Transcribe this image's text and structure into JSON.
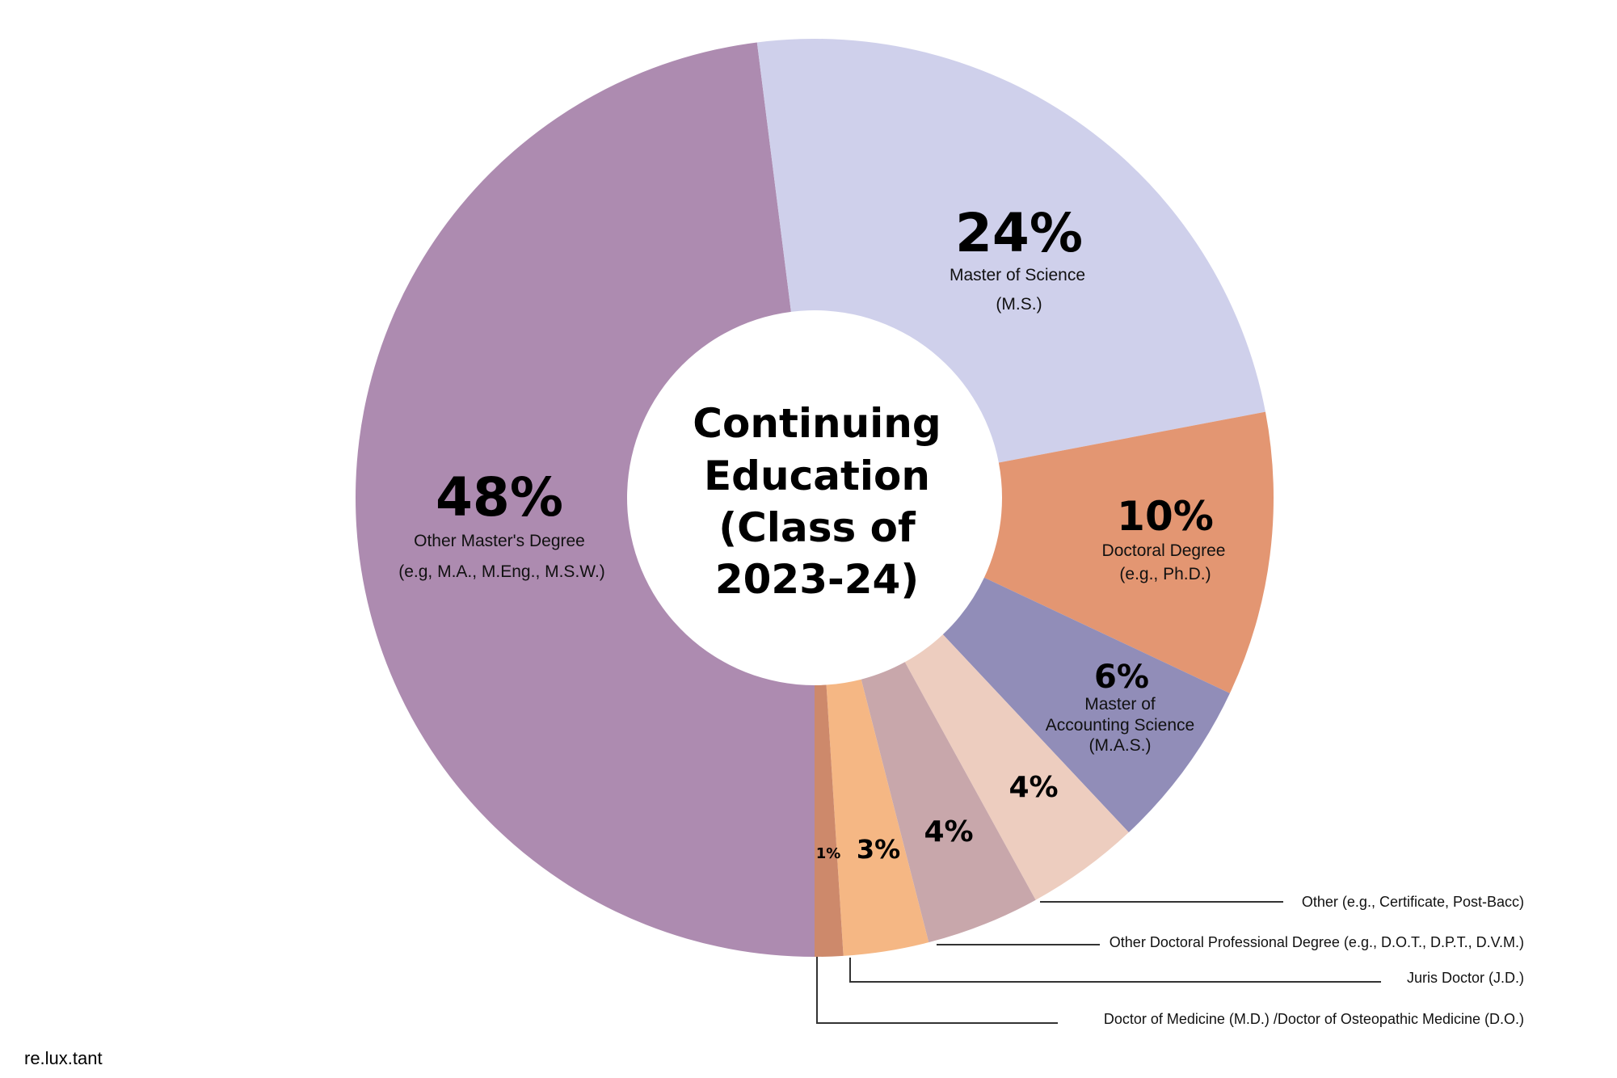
{
  "chart_data": {
    "type": "pie",
    "donut": true,
    "title_lines": [
      "Continuing",
      "Education",
      "(Class of",
      "2023-24)"
    ],
    "slices": [
      {
        "name": "Other Master's Degree (e.g, M.A., M.Eng., M.S.W.)",
        "value": 48,
        "pct_label": "48%",
        "label_lines": [
          "Other Master's Degree",
          "(e.g, M.A., M.Eng., M.S.W.)"
        ],
        "color": "#ad8bb0"
      },
      {
        "name": "Master of Science (M.S.)",
        "value": 24,
        "pct_label": "24%",
        "label_lines": [
          "Master of Science",
          "(M.S.)"
        ],
        "color": "#cfd0eb"
      },
      {
        "name": "Doctoral Degree (e.g., Ph.D.)",
        "value": 10,
        "pct_label": "10%",
        "label_lines": [
          "Doctoral Degree",
          "(e.g., Ph.D.)"
        ],
        "color": "#e39672"
      },
      {
        "name": "Master of Accounting Science (M.A.S.)",
        "value": 6,
        "pct_label": "6%",
        "label_lines": [
          "Master of",
          "Accounting Science",
          "(M.A.S.)"
        ],
        "color": "#918db8"
      },
      {
        "name": "Other (e.g., Certificate, Post-Bacc)",
        "value": 4,
        "pct_label": "4%",
        "leader_label": "Other (e.g., Certificate, Post-Bacc)",
        "color": "#edcdbf"
      },
      {
        "name": "Other Doctoral Professional Degree (e.g., D.O.T., D.P.T., D.V.M.)",
        "value": 4,
        "pct_label": "4%",
        "leader_label": "Other Doctoral Professional Degree (e.g., D.O.T., D.P.T., D.V.M.)",
        "color": "#c8a7ab"
      },
      {
        "name": "Juris Doctor (J.D.)",
        "value": 3,
        "pct_label": "3%",
        "leader_label": "Juris Doctor (J.D.)",
        "color": "#f5b784"
      },
      {
        "name": "Doctor of Medicine (M.D.) /Doctor of Osteopathic Medicine (D.O.)",
        "value": 1,
        "pct_label": "1%",
        "leader_label": "Doctor of Medicine (M.D.) /Doctor of Osteopathic Medicine (D.O.)",
        "color": "#cd896b"
      }
    ]
  },
  "watermark": "re.lux.tant"
}
